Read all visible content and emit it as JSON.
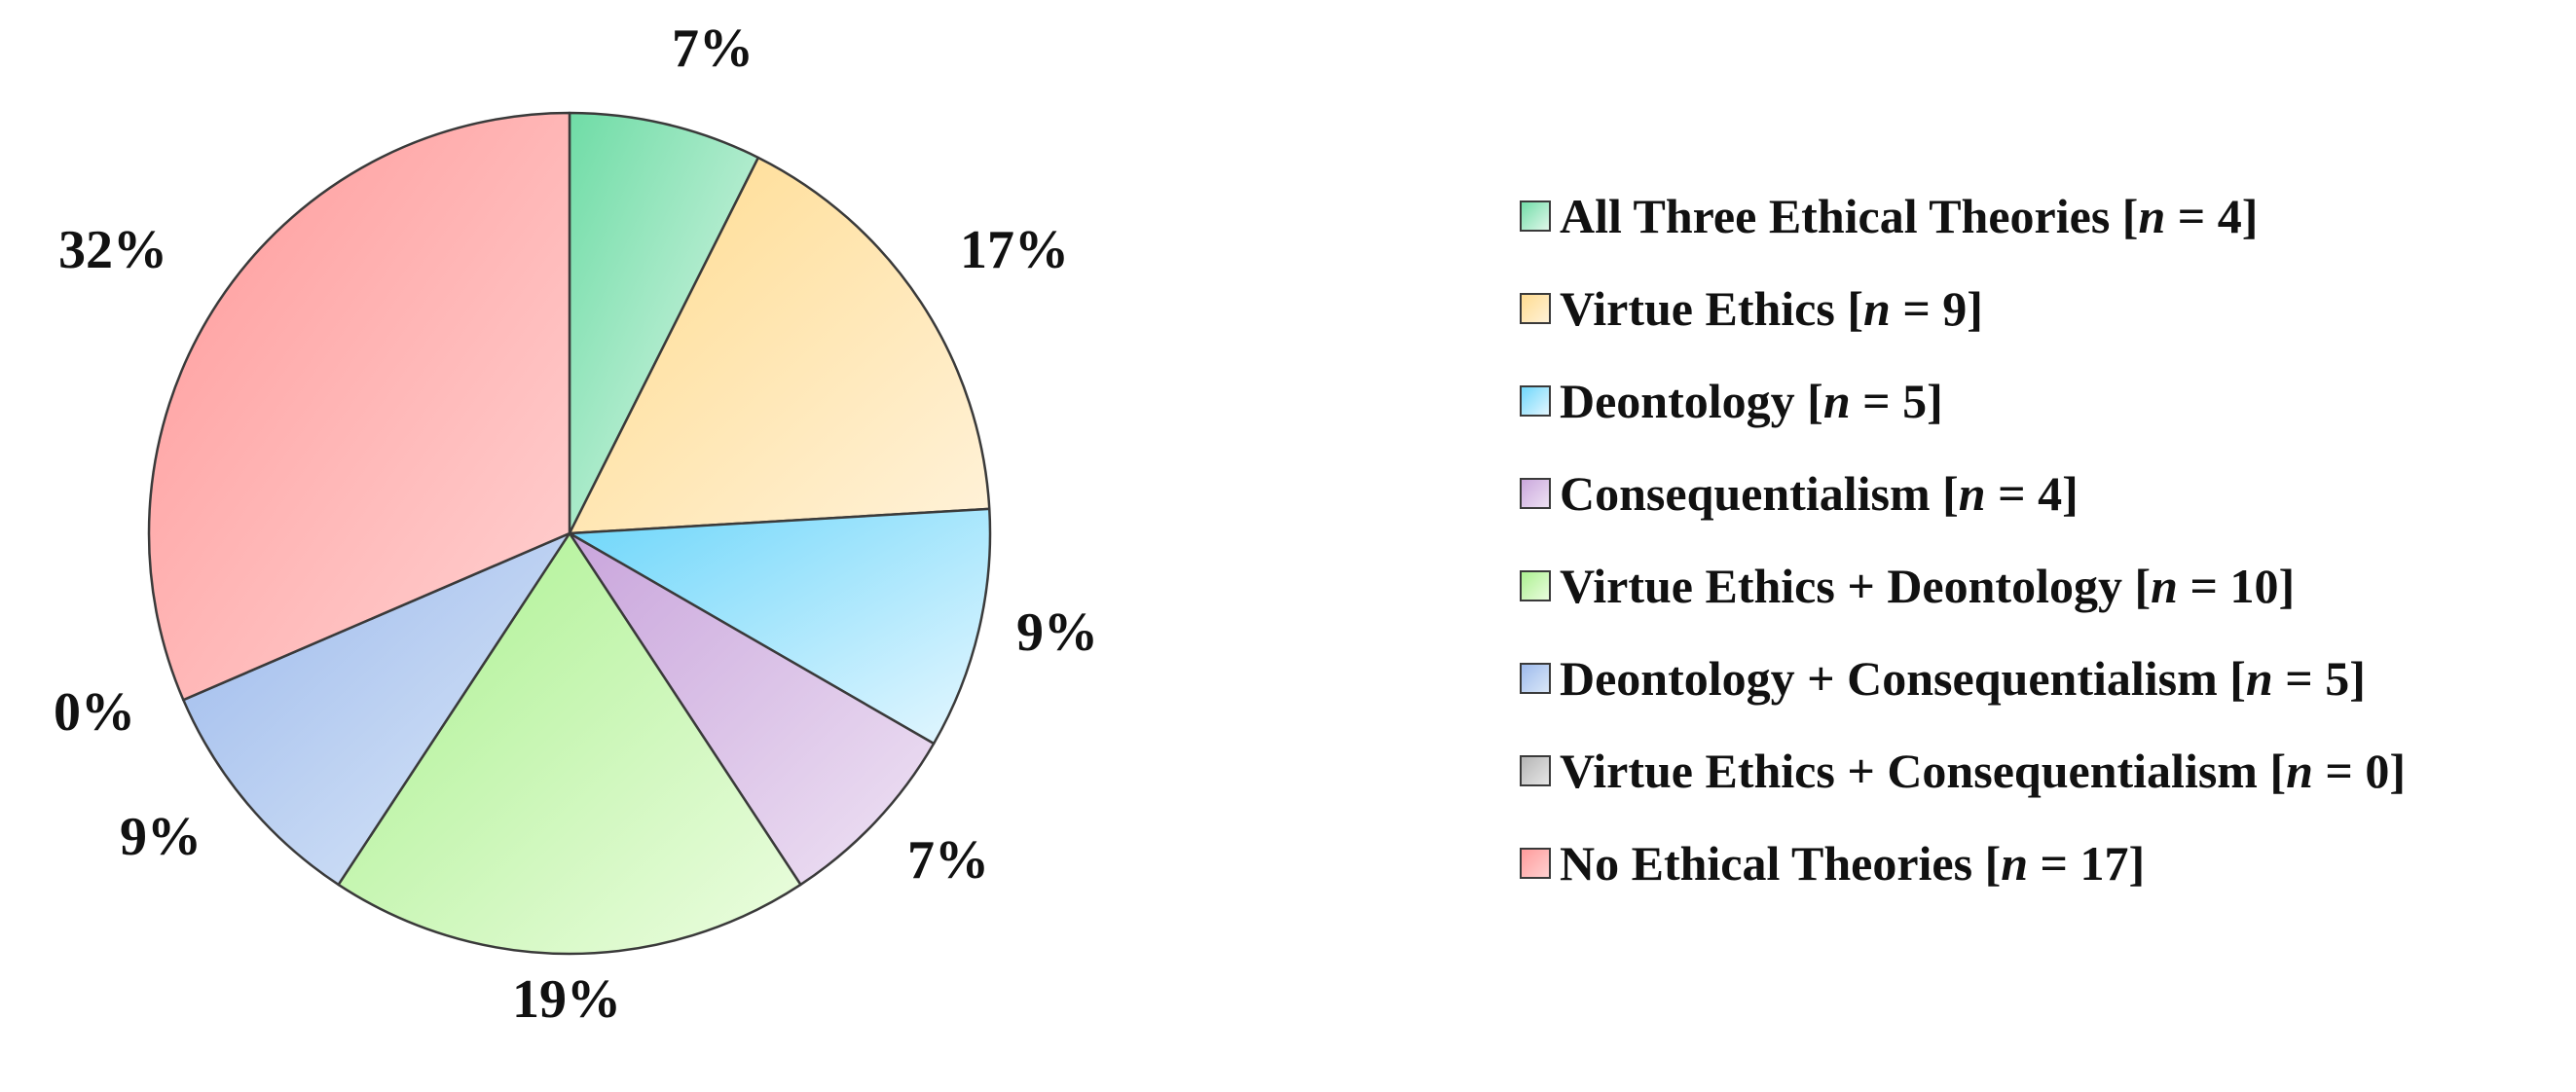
{
  "chart_data": {
    "type": "pie",
    "title": "",
    "slices": [
      {
        "label": "All Three Ethical Theories",
        "n_text": "4",
        "value": 4,
        "pct_label": "7%",
        "color_light": "#e3f8ec",
        "color_dark": "#6fdca6"
      },
      {
        "label": "Virtue Ethics",
        "n_text": "9",
        "value": 9,
        "pct_label": "17%",
        "color_light": "#fff2d9",
        "color_dark": "#ffdb8e"
      },
      {
        "label": "Deontology",
        "n_text": "5",
        "value": 5,
        "pct_label": "9%",
        "color_light": "#e6f7ff",
        "color_dark": "#6cd6fa"
      },
      {
        "label": "Consequentialism ",
        "n_text": "4",
        "value": 4,
        "pct_label": "7%",
        "color_light": "#efe3f4",
        "color_dark": "#c9a5dc"
      },
      {
        "label": "Virtue Ethics + Deontology",
        "n_text": "10",
        "value": 10,
        "pct_label": "19%",
        "color_light": "#ecfde0",
        "color_dark": "#a9f08e"
      },
      {
        "label": "Deontology + Consequentialism",
        "n_text": "5",
        "value": 5,
        "pct_label": "9%",
        "color_light": "#dbe8f8",
        "color_dark": "#9cb9ec"
      },
      {
        "label": "Virtue Ethics + Consequentialism",
        "n_text": "0",
        "value": 0,
        "pct_label": "0%",
        "color_light": "#e8e8e8",
        "color_dark": "#b3b3b3"
      },
      {
        "label": "No Ethical Theories",
        "n_text": "17",
        "value": 17,
        "pct_label": "32%",
        "color_light": "#ffd2d2",
        "color_dark": "#ff9a9a"
      }
    ],
    "legend_placement": "right"
  }
}
